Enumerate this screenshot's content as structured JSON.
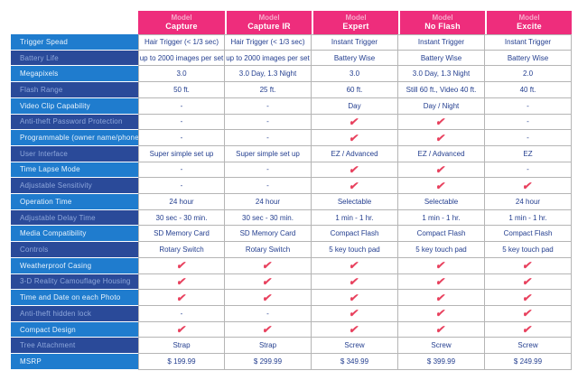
{
  "table": {
    "columns": [
      {
        "prefix": "Model",
        "name": "Capture"
      },
      {
        "prefix": "Model",
        "name": "Capture IR"
      },
      {
        "prefix": "Model",
        "name": "Expert"
      },
      {
        "prefix": "Model",
        "name": "No Flash"
      },
      {
        "prefix": "Model",
        "name": "Excite"
      }
    ],
    "rows": [
      {
        "feature": "Trigger Spead",
        "values": [
          "Hair Trigger (< 1/3 sec)",
          "Hair Trigger (< 1/3 sec)",
          "Instant Trigger",
          "Instant Trigger",
          "Instant Trigger"
        ]
      },
      {
        "feature": "Battery Life",
        "values": [
          "up to 2000 images per set",
          "up to 2000 images per set",
          "Battery Wise",
          "Battery Wise",
          "Battery Wise"
        ]
      },
      {
        "feature": "Megapixels",
        "values": [
          "3.0",
          "3.0 Day, 1.3 Night",
          "3.0",
          "3.0 Day, 1.3 Night",
          "2.0"
        ]
      },
      {
        "feature": "Flash Range",
        "values": [
          "50 ft.",
          "25 ft.",
          "60 ft.",
          "Still 60 ft., Video 40 ft.",
          "40 ft."
        ]
      },
      {
        "feature": "Video Clip Capability",
        "values": [
          "-",
          "-",
          "Day",
          "Day / Night",
          "-"
        ]
      },
      {
        "feature": "Anti-theft Password Protection",
        "values": [
          "-",
          "-",
          "✔",
          "✔",
          "-"
        ]
      },
      {
        "feature": "Programmable (owner name/phone)",
        "values": [
          "-",
          "-",
          "✔",
          "✔",
          "-"
        ]
      },
      {
        "feature": "User Interface",
        "values": [
          "Super simple set up",
          "Super simple set up",
          "EZ / Advanced",
          "EZ / Advanced",
          "EZ"
        ]
      },
      {
        "feature": "Time Lapse Mode",
        "values": [
          "-",
          "-",
          "✔",
          "✔",
          "-"
        ]
      },
      {
        "feature": "Adjustable Sensitivity",
        "values": [
          "-",
          "-",
          "✔",
          "✔",
          "✔"
        ]
      },
      {
        "feature": "Operation Time",
        "values": [
          "24 hour",
          "24 hour",
          "Selectable",
          "Selectable",
          "24 hour"
        ]
      },
      {
        "feature": "Adjustable Delay Time",
        "values": [
          "30 sec - 30 min.",
          "30 sec - 30 min.",
          "1 min - 1 hr.",
          "1 min - 1 hr.",
          "1 min - 1 hr."
        ]
      },
      {
        "feature": "Media Compatibility",
        "values": [
          "SD Memory Card",
          "SD Memory Card",
          "Compact Flash",
          "Compact Flash",
          "Compact Flash"
        ]
      },
      {
        "feature": "Controls",
        "values": [
          "Rotary Switch",
          "Rotary Switch",
          "5 key touch pad",
          "5 key touch pad",
          "5 key touch pad"
        ]
      },
      {
        "feature": "Weatherproof Casing",
        "values": [
          "✔",
          "✔",
          "✔",
          "✔",
          "✔"
        ]
      },
      {
        "feature": "3-D Reality Camouflage Housing",
        "values": [
          "✔",
          "✔",
          "✔",
          "✔",
          "✔"
        ]
      },
      {
        "feature": "Time and Date on each Photo",
        "values": [
          "✔",
          "✔",
          "✔",
          "✔",
          "✔"
        ]
      },
      {
        "feature": "Anti-theft hidden lock",
        "values": [
          "-",
          "-",
          "✔",
          "✔",
          "✔"
        ]
      },
      {
        "feature": "Compact Design",
        "values": [
          "✔",
          "✔",
          "✔",
          "✔",
          "✔"
        ]
      },
      {
        "feature": "Tree Attachment",
        "values": [
          "Strap",
          "Strap",
          "Screw",
          "Screw",
          "Screw"
        ]
      },
      {
        "feature": "MSRP",
        "values": [
          "$ 199.99",
          "$ 299.99",
          "$ 349.99",
          "$ 399.99",
          "$ 249.99"
        ]
      }
    ],
    "symbols": {
      "check": "✔",
      "none": "-"
    },
    "colors": {
      "header_pink": "#EE2D7C",
      "header_prefix_pink": "#F6A8CA",
      "row_light_blue": "#1F7CCE",
      "row_dark_blue": "#2A4A99",
      "value_navy": "#233E8F",
      "check_red": "#E8415E",
      "grid_line": "#B5B5B5"
    }
  }
}
